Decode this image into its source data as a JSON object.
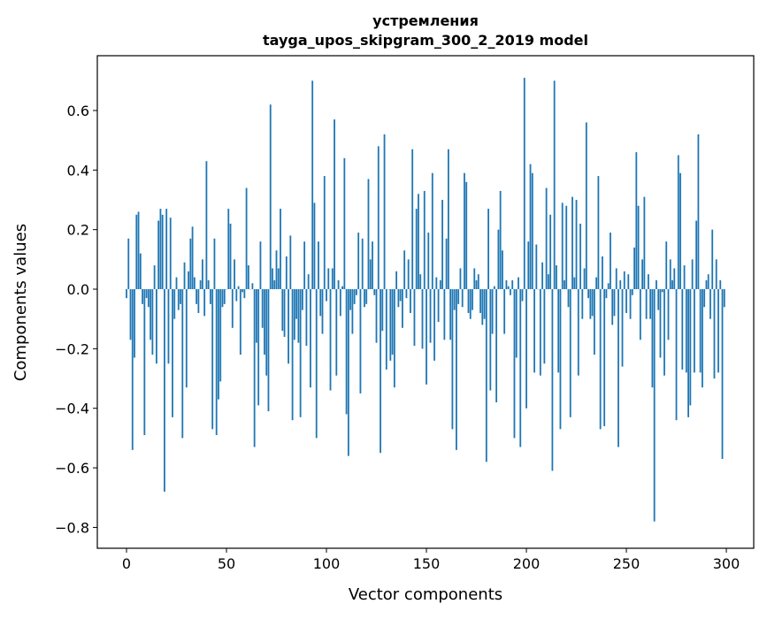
{
  "chart_data": {
    "type": "bar",
    "title": "устремления",
    "subtitle": "tayga_upos_skipgram_300_2_2019 model",
    "xlabel": "Vector components",
    "ylabel": "Components values",
    "xlim": [
      -14.6,
      313.7
    ],
    "ylim": [
      -0.87,
      0.784
    ],
    "xticks": [
      0,
      50,
      100,
      150,
      200,
      250,
      300
    ],
    "xtick_labels": [
      "0",
      "50",
      "100",
      "150",
      "200",
      "250",
      "300"
    ],
    "yticks": [
      -0.8,
      -0.6,
      -0.4,
      -0.2,
      0.0,
      0.2,
      0.4,
      0.6
    ],
    "ytick_labels": [
      "−0.8",
      "−0.6",
      "−0.4",
      "−0.2",
      "0.0",
      "0.2",
      "0.4",
      "0.6"
    ],
    "grid": false,
    "color": "#1f77b4",
    "values": [
      -0.03,
      0.17,
      -0.17,
      -0.54,
      -0.23,
      0.25,
      0.26,
      0.12,
      -0.05,
      -0.49,
      -0.03,
      -0.06,
      -0.17,
      -0.22,
      0.08,
      -0.25,
      0.23,
      0.27,
      0.25,
      -0.68,
      0.27,
      -0.25,
      0.24,
      -0.43,
      -0.1,
      0.04,
      -0.07,
      -0.05,
      -0.5,
      0.09,
      -0.33,
      0.06,
      0.17,
      0.21,
      0.04,
      -0.05,
      -0.08,
      0.03,
      0.1,
      -0.09,
      0.43,
      0.03,
      -0.05,
      -0.47,
      0.17,
      -0.49,
      -0.37,
      -0.31,
      -0.06,
      -0.05,
      0.0,
      0.27,
      0.22,
      -0.13,
      0.1,
      -0.04,
      0.01,
      -0.22,
      -0.01,
      -0.03,
      0.34,
      0.08,
      0.0,
      0.02,
      -0.53,
      -0.18,
      -0.39,
      0.16,
      -0.13,
      -0.22,
      -0.29,
      -0.41,
      0.62,
      0.07,
      0.03,
      0.13,
      0.07,
      0.27,
      -0.14,
      -0.16,
      0.11,
      -0.25,
      0.18,
      -0.44,
      -0.17,
      -0.1,
      -0.18,
      -0.43,
      -0.07,
      0.16,
      -0.19,
      0.05,
      -0.33,
      0.7,
      0.29,
      -0.5,
      0.16,
      -0.09,
      -0.15,
      0.38,
      -0.04,
      0.07,
      -0.34,
      0.07,
      0.57,
      -0.29,
      0.03,
      -0.09,
      0.01,
      0.44,
      -0.42,
      -0.56,
      -0.07,
      -0.15,
      -0.05,
      -0.02,
      0.19,
      -0.35,
      0.17,
      -0.06,
      -0.05,
      0.37,
      0.1,
      0.16,
      -0.02,
      -0.18,
      0.48,
      -0.55,
      -0.14,
      0.52,
      -0.27,
      0.0,
      -0.24,
      -0.22,
      -0.33,
      0.06,
      -0.06,
      -0.04,
      -0.13,
      0.13,
      -0.03,
      0.1,
      -0.08,
      0.47,
      -0.19,
      0.27,
      0.32,
      0.05,
      -0.2,
      0.33,
      -0.32,
      0.19,
      -0.18,
      0.39,
      -0.24,
      0.04,
      -0.11,
      0.03,
      0.3,
      -0.17,
      0.17,
      0.47,
      -0.17,
      -0.47,
      -0.07,
      -0.54,
      -0.05,
      0.07,
      -0.06,
      0.39,
      0.36,
      -0.08,
      -0.1,
      -0.07,
      0.07,
      0.03,
      0.05,
      -0.08,
      -0.12,
      -0.1,
      -0.58,
      0.27,
      -0.34,
      -0.15,
      0.01,
      -0.38,
      0.2,
      0.33,
      0.13,
      -0.15,
      0.03,
      0.01,
      -0.02,
      0.03,
      -0.5,
      -0.23,
      0.04,
      -0.53,
      -0.04,
      0.71,
      -0.4,
      0.16,
      0.42,
      0.39,
      -0.28,
      0.15,
      0.0,
      -0.29,
      0.09,
      -0.25,
      0.34,
      0.05,
      0.25,
      -0.61,
      0.7,
      0.08,
      -0.28,
      -0.47,
      0.29,
      0.03,
      0.28,
      -0.06,
      -0.43,
      0.31,
      0.04,
      0.3,
      -0.29,
      0.22,
      -0.1,
      0.07,
      0.56,
      -0.03,
      -0.1,
      -0.09,
      -0.22,
      0.04,
      0.38,
      -0.47,
      0.11,
      -0.46,
      -0.03,
      0.02,
      0.19,
      -0.12,
      -0.09,
      0.07,
      -0.53,
      0.03,
      -0.26,
      0.06,
      -0.08,
      0.05,
      -0.1,
      -0.02,
      0.14,
      0.46,
      0.28,
      -0.17,
      0.1,
      0.31,
      -0.1,
      0.05,
      -0.1,
      -0.33,
      -0.78,
      0.03,
      -0.07,
      -0.23,
      -0.01,
      -0.29,
      0.16,
      -0.17,
      0.1,
      0.03,
      0.07,
      -0.44,
      0.45,
      0.39,
      -0.27,
      0.08,
      -0.28,
      -0.43,
      -0.39,
      0.1,
      -0.28,
      0.23,
      0.52,
      -0.28,
      -0.33,
      -0.06,
      0.03,
      0.05,
      -0.1,
      0.2,
      -0.3,
      0.1,
      -0.28,
      0.03,
      -0.57,
      -0.06
    ]
  }
}
